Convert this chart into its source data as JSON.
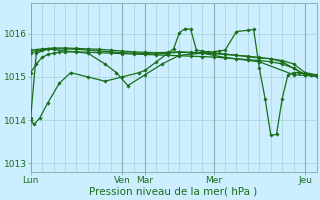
{
  "background_color": "#cceeff",
  "plot_bg_color": "#cceeff",
  "grid_color": "#99cccc",
  "line_color": "#1a6e1a",
  "ylim": [
    1012.8,
    1016.7
  ],
  "yticks": [
    1013,
    1014,
    1015,
    1016
  ],
  "xlabel": "Pression niveau de la mer( hPa )",
  "xlabel_fontsize": 7.5,
  "tick_fontsize": 6.5,
  "day_labels": [
    "Lun",
    "Ven",
    "Mar",
    "Mer",
    "Jeu"
  ],
  "day_positions": [
    0,
    80,
    100,
    160,
    240
  ],
  "xlim": [
    0,
    250
  ],
  "series": [
    {
      "x": [
        0,
        5,
        10,
        15,
        20,
        25,
        30,
        40,
        50,
        60,
        70,
        80,
        90,
        100,
        110,
        120,
        130,
        140,
        150,
        160,
        170,
        180,
        190,
        200,
        210,
        220,
        230,
        240,
        250
      ],
      "y": [
        1015.1,
        1015.3,
        1015.45,
        1015.52,
        1015.55,
        1015.57,
        1015.58,
        1015.58,
        1015.57,
        1015.56,
        1015.55,
        1015.54,
        1015.53,
        1015.52,
        1015.51,
        1015.5,
        1015.49,
        1015.48,
        1015.47,
        1015.46,
        1015.44,
        1015.42,
        1015.4,
        1015.38,
        1015.35,
        1015.3,
        1015.2,
        1015.05,
        1015.02
      ]
    },
    {
      "x": [
        0,
        10,
        20,
        30,
        40,
        50,
        60,
        70,
        80,
        90,
        100,
        110,
        120,
        130,
        140,
        150,
        160,
        170,
        180,
        190,
        200,
        210,
        220,
        230,
        240,
        250
      ],
      "y": [
        1015.62,
        1015.65,
        1015.67,
        1015.67,
        1015.66,
        1015.65,
        1015.64,
        1015.62,
        1015.6,
        1015.58,
        1015.57,
        1015.56,
        1015.57,
        1015.58,
        1015.57,
        1015.56,
        1015.55,
        1015.53,
        1015.5,
        1015.47,
        1015.44,
        1015.42,
        1015.38,
        1015.3,
        1015.1,
        1015.05
      ]
    },
    {
      "x": [
        0,
        5,
        15,
        30,
        50,
        65,
        75,
        85,
        100,
        115,
        130,
        150,
        170,
        200,
        230,
        250
      ],
      "y": [
        1014.05,
        1015.55,
        1015.65,
        1015.6,
        1015.55,
        1015.3,
        1015.1,
        1014.8,
        1015.05,
        1015.3,
        1015.5,
        1015.55,
        1015.45,
        1015.35,
        1015.05,
        1015.02
      ]
    },
    {
      "x": [
        0,
        3,
        8,
        15,
        25,
        35,
        50,
        65,
        80,
        95,
        100,
        110,
        120,
        125,
        130,
        135,
        140,
        145,
        150,
        155,
        160,
        165,
        170,
        180,
        190,
        195,
        200,
        205,
        210,
        215,
        220,
        225,
        230,
        235,
        240,
        245,
        250
      ],
      "y": [
        1014.0,
        1013.9,
        1014.05,
        1014.4,
        1014.85,
        1015.1,
        1015.0,
        1014.9,
        1015.0,
        1015.1,
        1015.15,
        1015.35,
        1015.55,
        1015.65,
        1016.02,
        1016.12,
        1016.1,
        1015.62,
        1015.6,
        1015.58,
        1015.58,
        1015.6,
        1015.62,
        1016.05,
        1016.08,
        1016.1,
        1015.2,
        1014.5,
        1013.65,
        1013.67,
        1014.5,
        1015.05,
        1015.1,
        1015.1,
        1015.08,
        1015.05,
        1015.02
      ]
    },
    {
      "x": [
        0,
        5,
        10,
        20,
        30,
        40,
        50,
        60,
        70,
        80,
        90,
        100,
        110,
        120,
        130,
        140,
        150,
        160,
        170,
        180,
        190,
        200,
        210,
        220,
        230,
        240,
        250
      ],
      "y": [
        1015.55,
        1015.6,
        1015.62,
        1015.65,
        1015.65,
        1015.64,
        1015.62,
        1015.6,
        1015.58,
        1015.56,
        1015.55,
        1015.54,
        1015.53,
        1015.55,
        1015.57,
        1015.56,
        1015.55,
        1015.54,
        1015.52,
        1015.5,
        1015.48,
        1015.45,
        1015.42,
        1015.35,
        1015.2,
        1015.05,
        1015.02
      ]
    }
  ],
  "marker": "D",
  "markersize": 1.8,
  "linewidth": 0.9
}
